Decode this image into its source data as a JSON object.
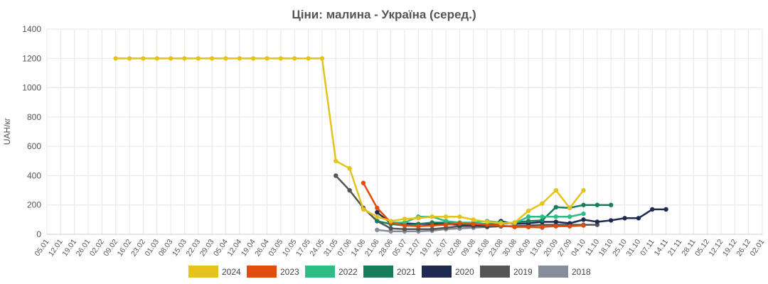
{
  "chart_data": {
    "type": "line",
    "title": "Ціни: малина - Україна (серед.)",
    "ylabel": "UAH/кг",
    "xlabel": "",
    "ylim": [
      0,
      1400
    ],
    "yticks": [
      "0",
      "200",
      "400",
      "600",
      "800",
      "1000",
      "1200",
      "1400"
    ],
    "x": [
      "05.01",
      "12.01",
      "19.01",
      "26.01",
      "02.02",
      "09.02",
      "16.02",
      "23.02",
      "01.03",
      "08.03",
      "15.03",
      "22.03",
      "29.03",
      "05.04",
      "12.04",
      "19.04",
      "26.04",
      "03.05",
      "10.05",
      "17.05",
      "24.05",
      "31.05",
      "07.06",
      "14.06",
      "21.06",
      "28.06",
      "05.07",
      "12.07",
      "19.07",
      "26.07",
      "02.08",
      "09.08",
      "16.08",
      "23.08",
      "30.08",
      "06.09",
      "13.09",
      "20.09",
      "27.09",
      "04.10",
      "11.10",
      "18.10",
      "25.10",
      "31.10",
      "07.11",
      "14.11",
      "21.11",
      "28.11",
      "05.12",
      "12.12",
      "19.12",
      "26.12",
      "02.01"
    ],
    "grid": true,
    "legend_position": "bottom",
    "series": [
      {
        "name": "2024",
        "color": "#e5c31c",
        "points": [
          [
            5,
            1200
          ],
          [
            6,
            1200
          ],
          [
            7,
            1200
          ],
          [
            8,
            1200
          ],
          [
            9,
            1200
          ],
          [
            10,
            1200
          ],
          [
            11,
            1200
          ],
          [
            12,
            1200
          ],
          [
            13,
            1200
          ],
          [
            14,
            1200
          ],
          [
            15,
            1200
          ],
          [
            16,
            1200
          ],
          [
            17,
            1200
          ],
          [
            18,
            1200
          ],
          [
            19,
            1200
          ],
          [
            20,
            1200
          ],
          [
            21,
            500
          ],
          [
            22,
            450
          ],
          [
            23,
            170
          ],
          [
            24,
            120
          ],
          [
            25,
            90
          ],
          [
            26,
            105
          ],
          [
            27,
            110
          ],
          [
            28,
            120
          ],
          [
            29,
            120
          ],
          [
            30,
            120
          ],
          [
            31,
            100
          ],
          [
            32,
            85
          ],
          [
            33,
            75
          ],
          [
            34,
            80
          ],
          [
            35,
            160
          ],
          [
            36,
            210
          ],
          [
            37,
            300
          ],
          [
            38,
            180
          ],
          [
            39,
            300
          ]
        ]
      },
      {
        "name": "2023",
        "color": "#e14d0c",
        "points": [
          [
            23,
            350
          ],
          [
            24,
            180
          ],
          [
            25,
            80
          ],
          [
            26,
            60
          ],
          [
            27,
            55
          ],
          [
            28,
            60
          ],
          [
            29,
            65
          ],
          [
            30,
            75
          ],
          [
            31,
            70
          ],
          [
            32,
            65
          ],
          [
            33,
            60
          ],
          [
            34,
            50
          ],
          [
            35,
            50
          ],
          [
            36,
            50
          ],
          [
            37,
            55
          ],
          [
            38,
            55
          ],
          [
            39,
            60
          ]
        ]
      },
      {
        "name": "2022",
        "color": "#2ebd85",
        "points": [
          [
            25,
            80
          ],
          [
            26,
            80
          ],
          [
            27,
            120
          ],
          [
            28,
            120
          ],
          [
            29,
            90
          ],
          [
            30,
            80
          ],
          [
            31,
            80
          ],
          [
            32,
            90
          ],
          [
            33,
            80
          ],
          [
            34,
            75
          ],
          [
            35,
            120
          ],
          [
            36,
            120
          ],
          [
            37,
            120
          ],
          [
            38,
            120
          ],
          [
            39,
            140
          ]
        ]
      },
      {
        "name": "2021",
        "color": "#1a7d5a",
        "points": [
          [
            24,
            90
          ],
          [
            25,
            70
          ],
          [
            26,
            60
          ],
          [
            27,
            70
          ],
          [
            28,
            80
          ],
          [
            29,
            80
          ],
          [
            30,
            70
          ],
          [
            31,
            70
          ],
          [
            32,
            70
          ],
          [
            33,
            70
          ],
          [
            34,
            80
          ],
          [
            35,
            90
          ],
          [
            36,
            95
          ],
          [
            37,
            185
          ],
          [
            38,
            180
          ],
          [
            39,
            200
          ],
          [
            40,
            200
          ],
          [
            41,
            200
          ]
        ]
      },
      {
        "name": "2020",
        "color": "#1e2a4f",
        "points": [
          [
            24,
            150
          ],
          [
            25,
            75
          ],
          [
            26,
            75
          ],
          [
            27,
            70
          ],
          [
            28,
            70
          ],
          [
            29,
            70
          ],
          [
            30,
            65
          ],
          [
            31,
            65
          ],
          [
            32,
            60
          ],
          [
            33,
            90
          ],
          [
            34,
            70
          ],
          [
            35,
            75
          ],
          [
            36,
            85
          ],
          [
            37,
            85
          ],
          [
            38,
            75
          ],
          [
            39,
            100
          ],
          [
            40,
            85
          ],
          [
            41,
            95
          ],
          [
            42,
            110
          ],
          [
            43,
            110
          ],
          [
            44,
            170
          ],
          [
            45,
            170
          ]
        ]
      },
      {
        "name": "2019",
        "color": "#555555",
        "points": [
          [
            21,
            400
          ],
          [
            22,
            300
          ],
          [
            23,
            180
          ],
          [
            24,
            90
          ],
          [
            25,
            40
          ],
          [
            26,
            35
          ],
          [
            27,
            35
          ],
          [
            28,
            35
          ],
          [
            29,
            45
          ],
          [
            30,
            55
          ],
          [
            31,
            55
          ],
          [
            32,
            50
          ],
          [
            33,
            55
          ],
          [
            34,
            55
          ],
          [
            35,
            60
          ],
          [
            36,
            65
          ],
          [
            37,
            65
          ],
          [
            38,
            65
          ],
          [
            39,
            65
          ],
          [
            40,
            65
          ]
        ]
      },
      {
        "name": "2018",
        "color": "#888e99",
        "points": [
          [
            24,
            30
          ],
          [
            25,
            20
          ],
          [
            26,
            20
          ],
          [
            27,
            20
          ],
          [
            28,
            25
          ],
          [
            29,
            35
          ],
          [
            30,
            40
          ],
          [
            31,
            45
          ],
          [
            32,
            50
          ],
          [
            33,
            55
          ],
          [
            34,
            55
          ],
          [
            35,
            50
          ],
          [
            36,
            45
          ]
        ]
      }
    ]
  }
}
